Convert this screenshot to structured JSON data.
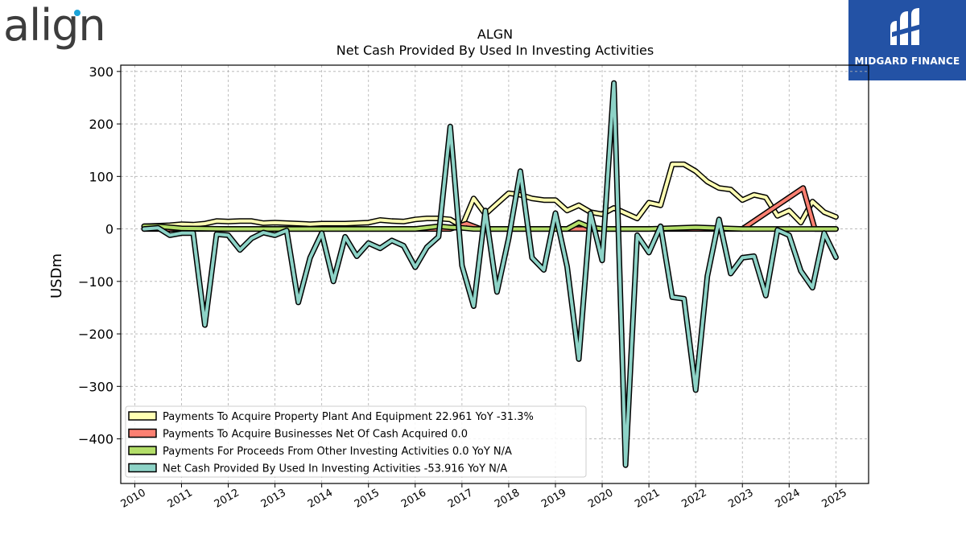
{
  "brand": {
    "left_logo": "align",
    "right_logo": "MIDGARD FINANCE"
  },
  "chart_data": {
    "type": "line",
    "title": "ALGN",
    "subtitle": "Net Cash Provided By Used In Investing Activities",
    "ylabel": "USDm",
    "xlabel": "",
    "ylim": [
      -485,
      312
    ],
    "xlim": [
      2009.7,
      2025.7
    ],
    "grid": true,
    "legend_position": "lower-left",
    "y_ticks": [
      -400,
      -300,
      -200,
      -100,
      0,
      100,
      200,
      300
    ],
    "x_ticks": [
      2010,
      2011,
      2012,
      2013,
      2014,
      2015,
      2016,
      2017,
      2018,
      2019,
      2020,
      2021,
      2022,
      2023,
      2024,
      2025
    ],
    "series": [
      {
        "name": "Payments To Acquire Property Plant And Equipment",
        "legend_label": "Payments To Acquire Property Plant And Equipment  22.961 YoY -31.3%",
        "color": "#ffffb3",
        "x": [
          2010.2,
          2010.5,
          2010.75,
          2011.0,
          2011.25,
          2011.5,
          2011.75,
          2012.0,
          2012.25,
          2012.5,
          2012.75,
          2013.0,
          2013.25,
          2013.5,
          2013.75,
          2014.0,
          2014.25,
          2014.5,
          2014.75,
          2015.0,
          2015.25,
          2015.5,
          2015.75,
          2016.0,
          2016.25,
          2016.5,
          2016.75,
          2017.0,
          2017.25,
          2017.5,
          2017.75,
          2018.0,
          2018.25,
          2018.5,
          2018.75,
          2019.0,
          2019.25,
          2019.5,
          2019.75,
          2020.0,
          2020.25,
          2020.5,
          2020.75,
          2021.0,
          2021.25,
          2021.5,
          2021.75,
          2022.0,
          2022.25,
          2022.5,
          2022.75,
          2023.0,
          2023.25,
          2023.5,
          2023.75,
          2024.0,
          2024.25,
          2024.5,
          2024.75,
          2025.0
        ],
        "values": [
          5,
          6,
          7,
          9,
          8,
          10,
          15,
          14,
          15,
          15,
          11,
          12,
          11,
          10,
          9,
          10,
          10,
          10,
          11,
          12,
          17,
          15,
          14,
          18,
          20,
          20,
          18,
          5,
          58,
          28,
          48,
          68,
          65,
          58,
          55,
          55,
          35,
          45,
          32,
          28,
          40,
          30,
          20,
          50,
          45,
          123,
          123,
          110,
          90,
          78,
          75,
          55,
          65,
          60,
          25,
          35,
          12,
          52,
          32,
          23
        ]
      },
      {
        "name": "Payments To Acquire Businesses Net Of Cash Acquired",
        "legend_label": "Payments To Acquire Businesses Net Of Cash Acquired  0.0",
        "color": "#fb8072",
        "x": [
          2010.2,
          2016.75,
          2017.1,
          2017.4,
          2019.25,
          2019.55,
          2019.85,
          2023.0,
          2024.3,
          2024.55,
          2025.0
        ],
        "values": [
          0,
          0,
          10,
          0,
          0,
          0,
          0,
          0,
          78,
          0,
          0
        ]
      },
      {
        "name": "Payments For Proceeds From Other Investing Activities",
        "legend_label": "Payments For Proceeds From Other Investing Activities  0.0 YoY N/A",
        "color": "#b3de69",
        "x": [
          2010.2,
          2010.5,
          2011.0,
          2012.0,
          2013.0,
          2014.0,
          2015.0,
          2016.0,
          2016.5,
          2016.75,
          2017.0,
          2017.25,
          2017.5,
          2018.0,
          2019.0,
          2019.25,
          2019.5,
          2019.75,
          2020.0,
          2021.0,
          2022.0,
          2023.0,
          2024.0,
          2025.0
        ],
        "values": [
          5,
          5,
          1,
          0,
          0,
          0,
          0,
          0,
          5,
          3,
          2,
          0,
          0,
          0,
          0,
          0,
          12,
          3,
          0,
          0,
          3,
          0,
          0,
          0
        ]
      },
      {
        "name": "Net Cash Provided By Used In Investing Activities",
        "legend_label": "Net Cash Provided By Used In Investing Activities  -53.916 YoY N/A",
        "color": "#8dd3c7",
        "x": [
          2010.2,
          2010.5,
          2010.75,
          2011.0,
          2011.25,
          2011.5,
          2011.75,
          2012.0,
          2012.25,
          2012.5,
          2012.75,
          2013.0,
          2013.25,
          2013.5,
          2013.75,
          2014.0,
          2014.25,
          2014.5,
          2014.75,
          2015.0,
          2015.25,
          2015.5,
          2015.75,
          2016.0,
          2016.25,
          2016.5,
          2016.75,
          2017.0,
          2017.25,
          2017.5,
          2017.75,
          2018.0,
          2018.25,
          2018.5,
          2018.75,
          2019.0,
          2019.25,
          2019.5,
          2019.75,
          2020.0,
          2020.25,
          2020.5,
          2020.75,
          2021.0,
          2021.25,
          2021.5,
          2021.75,
          2022.0,
          2022.25,
          2022.5,
          2022.75,
          2023.0,
          2023.25,
          2023.5,
          2023.75,
          2024.0,
          2024.25,
          2024.5,
          2024.75,
          2025.0
        ],
        "values": [
          0,
          2,
          -12,
          -8,
          -8,
          -183,
          -10,
          -12,
          -40,
          -18,
          -7,
          -12,
          -3,
          -140,
          -55,
          -8,
          -100,
          -15,
          -52,
          -27,
          -37,
          -22,
          -32,
          -73,
          -35,
          -15,
          195,
          -70,
          -147,
          35,
          -120,
          -18,
          110,
          -55,
          -78,
          30,
          -72,
          -248,
          30,
          -60,
          278,
          -450,
          -12,
          -45,
          5,
          -130,
          -133,
          -307,
          -90,
          18,
          -85,
          -55,
          -52,
          -127,
          -2,
          -12,
          -80,
          -112,
          -8,
          -54
        ]
      }
    ]
  }
}
